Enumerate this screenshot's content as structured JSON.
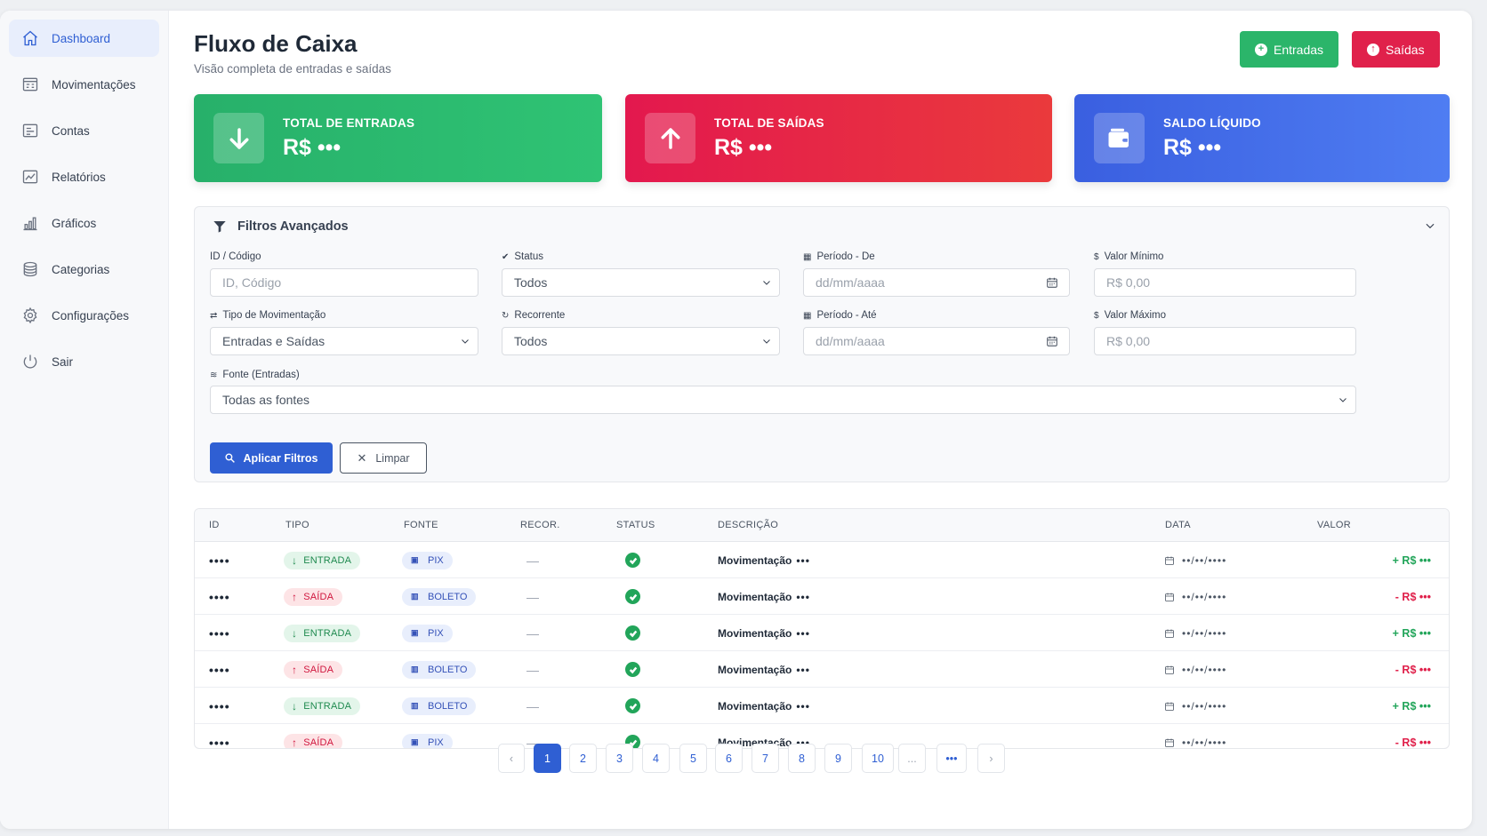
{
  "sidebar": {
    "items": [
      {
        "label": "Dashboard",
        "icon": "home-icon",
        "active": true
      },
      {
        "label": "Movimentações",
        "icon": "transactions-icon"
      },
      {
        "label": "Contas",
        "icon": "accounts-icon"
      },
      {
        "label": "Relatórios",
        "icon": "reports-icon"
      },
      {
        "label": "Gráficos",
        "icon": "bar-chart-icon"
      },
      {
        "label": "Categorias",
        "icon": "layers-icon"
      },
      {
        "label": "Configurações",
        "icon": "gear-icon"
      },
      {
        "label": "Sair",
        "icon": "power-icon"
      }
    ]
  },
  "header": {
    "title": "Fluxo de Caixa",
    "subtitle": "Visão completa de entradas e saídas",
    "btn_entradas": "Entradas",
    "btn_saidas": "Saídas"
  },
  "cards": [
    {
      "label": "TOTAL DE ENTRADAS",
      "value": "R$ •••",
      "icon": "arrow-down-icon",
      "color": "#2bb56a"
    },
    {
      "label": "TOTAL DE SAÍDAS",
      "value": "R$ •••",
      "icon": "arrow-up-icon",
      "color": "#e0214b"
    },
    {
      "label": "SALDO LÍQUIDO",
      "value": "R$ •••",
      "icon": "wallet-icon",
      "color": "#4570ea"
    }
  ],
  "filters": {
    "title": "Filtros Avançados",
    "id_label": "ID / Código",
    "id_placeholder": "ID, Código",
    "status_label": "Status",
    "status_value": "Todos",
    "periodo_de_label": "Período - De",
    "periodo_de_placeholder": "dd/mm/aaaa",
    "valor_min_label": "Valor Mínimo",
    "valor_min_placeholder": "R$ 0,00",
    "tipo_label": "Tipo de Movimentação",
    "tipo_value": "Entradas e Saídas",
    "recorrente_label": "Recorrente",
    "recorrente_value": "Todos",
    "periodo_ate_label": "Período - Até",
    "periodo_ate_placeholder": "dd/mm/aaaa",
    "valor_max_label": "Valor Máximo",
    "valor_max_placeholder": "R$ 0,00",
    "fonte_label": "Fonte (Entradas)",
    "fonte_value": "Todas as fontes",
    "apply_label": "Aplicar Filtros",
    "clear_label": "Limpar"
  },
  "table": {
    "headers": [
      "ID",
      "TIPO",
      "FONTE",
      "RECOR.",
      "STATUS",
      "DESCRIÇÃO",
      "DATA",
      "VALOR"
    ],
    "rows": [
      {
        "id": "••••",
        "tipo": "ENTRADA",
        "dir": "in",
        "fonte": "PIX",
        "recor": "—",
        "descricao": "Movimentação",
        "desc_mask": "•••",
        "data": "••/••/••••",
        "valor": "+ R$ •••"
      },
      {
        "id": "••••",
        "tipo": "SAÍDA",
        "dir": "out",
        "fonte": "BOLETO",
        "recor": "—",
        "descricao": "Movimentação",
        "desc_mask": "•••",
        "data": "••/••/••••",
        "valor": "- R$ •••"
      },
      {
        "id": "••••",
        "tipo": "ENTRADA",
        "dir": "in",
        "fonte": "PIX",
        "recor": "—",
        "descricao": "Movimentação",
        "desc_mask": "•••",
        "data": "••/••/••••",
        "valor": "+ R$ •••"
      },
      {
        "id": "••••",
        "tipo": "SAÍDA",
        "dir": "out",
        "fonte": "BOLETO",
        "recor": "—",
        "descricao": "Movimentação",
        "desc_mask": "•••",
        "data": "••/••/••••",
        "valor": "- R$ •••"
      },
      {
        "id": "••••",
        "tipo": "ENTRADA",
        "dir": "in",
        "fonte": "BOLETO",
        "recor": "—",
        "descricao": "Movimentação",
        "desc_mask": "•••",
        "data": "••/••/••••",
        "valor": "+ R$ •••"
      },
      {
        "id": "••••",
        "tipo": "SAÍDA",
        "dir": "out",
        "fonte": "PIX",
        "recor": "—",
        "descricao": "Movimentação",
        "desc_mask": "•••",
        "data": "••/••/••••",
        "valor": "- R$ •••"
      }
    ]
  },
  "pagination": {
    "prev": "‹",
    "pages": [
      "1",
      "2",
      "3",
      "4",
      "5",
      "6",
      "7",
      "8",
      "9",
      "10"
    ],
    "current": "1",
    "ellipsis": "...",
    "more": "•••",
    "next": "›"
  }
}
